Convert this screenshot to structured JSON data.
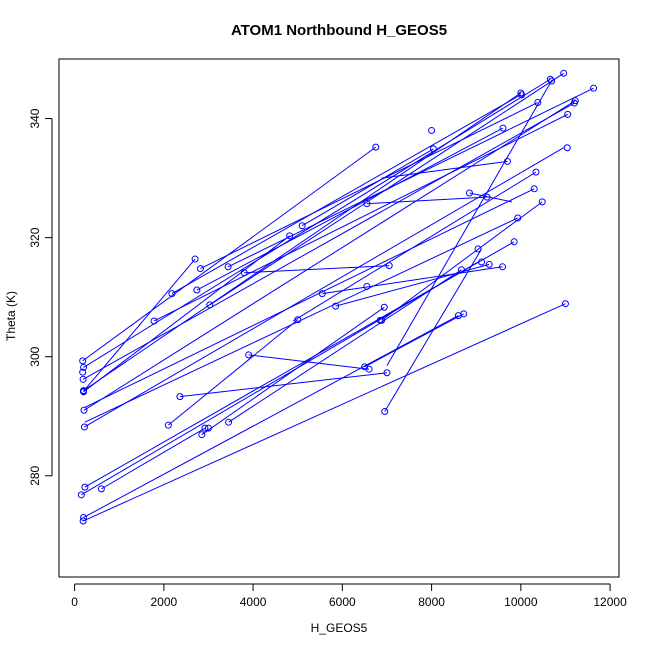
{
  "chart_data": {
    "type": "scatter",
    "title": "ATOM1 Northbound H_GEOS5",
    "xlabel": "H_GEOS5",
    "ylabel": "Theta (K)",
    "xlim": [
      -350,
      12200
    ],
    "ylim": [
      263,
      350
    ],
    "xticks": [
      0,
      2000,
      4000,
      6000,
      8000,
      10000,
      12000
    ],
    "yticks": [
      280,
      300,
      320,
      340
    ],
    "grid": false,
    "legend": "none",
    "colors": {
      "series": "#0000ff",
      "axis": "#000000",
      "background": "#ffffff"
    },
    "x": [
      180,
      200,
      180,
      190,
      200,
      210,
      220,
      230,
      150,
      200,
      190,
      600,
      200,
      200,
      2180,
      2700,
      2820,
      3030,
      3440,
      3800,
      2740,
      1780,
      4820,
      5100,
      5550,
      5850,
      6550,
      6850,
      6750,
      7050,
      6550,
      8000,
      8040,
      8850,
      9240,
      9600,
      10000,
      10020,
      10380,
      10660,
      10960,
      11050,
      11200,
      11220,
      11630,
      10690,
      11040,
      10480,
      10300,
      9930,
      9850,
      9120,
      9040,
      9290,
      9590,
      8670,
      8720,
      7000,
      6940,
      6880,
      6600,
      6500,
      6950,
      5000,
      3900,
      3000,
      2850,
      2100,
      2360,
      2920,
      3450,
      11000,
      8600,
      9700,
      10340
    ],
    "y": [
      299.3,
      298.2,
      297.4,
      296.2,
      294.3,
      291.0,
      288.2,
      278.1,
      276.8,
      273.0,
      272.4,
      277.8,
      294.2,
      294.1,
      310.6,
      316.4,
      314.8,
      308.7,
      315.1,
      314.1,
      311.2,
      306.0,
      320.3,
      322.0,
      310.6,
      308.5,
      311.8,
      306.1,
      335.2,
      315.3,
      325.7,
      338.0,
      334.9,
      327.5,
      326.8,
      338.4,
      344.3,
      344.0,
      342.7,
      346.6,
      347.6,
      340.7,
      342.6,
      343.0,
      345.1,
      346.3,
      335.1,
      326.0,
      328.2,
      323.3,
      319.3,
      315.9,
      318.1,
      315.5,
      315.1,
      314.6,
      307.2,
      297.3,
      308.3,
      306.1,
      297.9,
      298.3,
      290.8,
      306.2,
      300.3,
      288.0,
      286.9,
      288.5,
      293.3,
      288.0,
      289.0,
      308.9,
      306.9,
      332.8,
      331.0
    ],
    "segments": [
      [
        [
          180,
          299.3
        ],
        [
          6750,
          335.2
        ]
      ],
      [
        [
          200,
          298.2
        ],
        [
          10660,
          346.6
        ]
      ],
      [
        [
          190,
          296.2
        ],
        [
          11200,
          342.6
        ]
      ],
      [
        [
          200,
          294.3
        ],
        [
          10000,
          344.3
        ]
      ],
      [
        [
          210,
          291.0
        ],
        [
          11220,
          343.0
        ]
      ],
      [
        [
          220,
          288.2
        ],
        [
          10960,
          335.1
        ]
      ],
      [
        [
          230,
          278.1
        ],
        [
          9850,
          319.3
        ]
      ],
      [
        [
          150,
          276.8
        ],
        [
          9040,
          315.9
        ]
      ],
      [
        [
          200,
          273.0
        ],
        [
          8600,
          306.9
        ]
      ],
      [
        [
          190,
          272.4
        ],
        [
          11000,
          308.9
        ]
      ],
      [
        [
          600,
          277.8
        ],
        [
          2920,
          288.0
        ]
      ],
      [
        [
          200,
          294.1
        ],
        [
          4820,
          320.3
        ]
      ],
      [
        [
          200,
          294.2
        ],
        [
          2700,
          316.4
        ]
      ],
      [
        [
          2180,
          310.6
        ],
        [
          10000,
          344.0
        ]
      ],
      [
        [
          2820,
          314.8
        ],
        [
          10380,
          342.7
        ]
      ],
      [
        [
          3030,
          308.7
        ],
        [
          10960,
          347.6
        ]
      ],
      [
        [
          3440,
          315.1
        ],
        [
          11630,
          345.1
        ]
      ],
      [
        [
          1780,
          306.0
        ],
        [
          11050,
          340.7
        ]
      ],
      [
        [
          2740,
          311.2
        ],
        [
          9600,
          338.4
        ]
      ],
      [
        [
          5100,
          322.0
        ],
        [
          8040,
          334.9
        ]
      ],
      [
        [
          6550,
          325.7
        ],
        [
          9240,
          326.8
        ]
      ],
      [
        [
          3800,
          314.1
        ],
        [
          7050,
          315.3
        ]
      ],
      [
        [
          230,
          291.5
        ],
        [
          10300,
          328.2
        ]
      ],
      [
        [
          230,
          289.0
        ],
        [
          9930,
          323.3
        ]
      ],
      [
        [
          5550,
          310.6
        ],
        [
          9590,
          315.1
        ]
      ],
      [
        [
          5850,
          308.5
        ],
        [
          9290,
          315.5
        ]
      ],
      [
        [
          6880,
          306.1
        ],
        [
          10480,
          326.0
        ]
      ],
      [
        [
          6500,
          298.3
        ],
        [
          8720,
          307.2
        ]
      ],
      [
        [
          6950,
          290.8
        ],
        [
          9120,
          318.1
        ]
      ],
      [
        [
          2360,
          293.3
        ],
        [
          7000,
          297.3
        ]
      ],
      [
        [
          3900,
          300.3
        ],
        [
          6600,
          297.9
        ]
      ],
      [
        [
          2850,
          286.9
        ],
        [
          6940,
          308.3
        ]
      ],
      [
        [
          2100,
          288.5
        ],
        [
          5000,
          306.2
        ]
      ],
      [
        [
          3450,
          289.0
        ],
        [
          8670,
          314.6
        ]
      ],
      [
        [
          4900,
          306.0
        ],
        [
          10340,
          331.0
        ]
      ],
      [
        [
          6880,
          330.0
        ],
        [
          9700,
          332.8
        ]
      ],
      [
        [
          7000,
          298.5
        ],
        [
          10700,
          346.5
        ]
      ],
      [
        [
          8850,
          327.5
        ],
        [
          9800,
          326.0
        ]
      ]
    ]
  }
}
